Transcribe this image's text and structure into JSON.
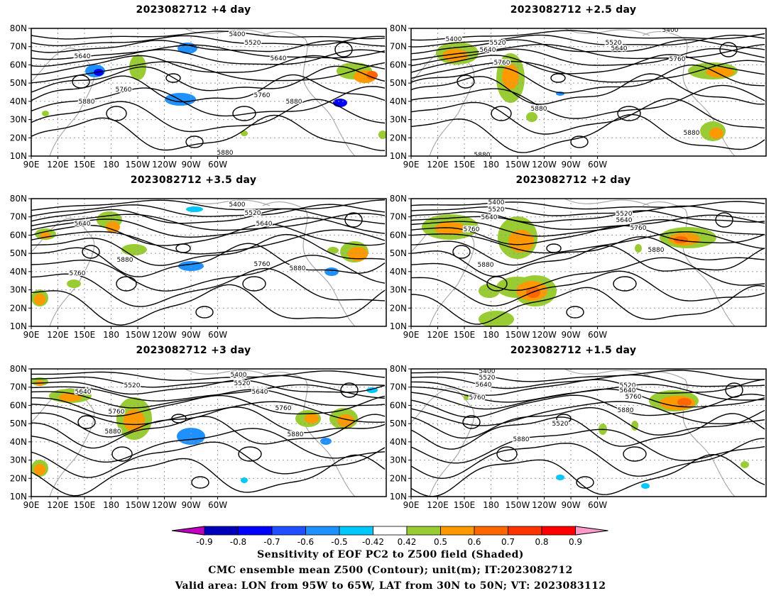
{
  "chart_data": [
    {
      "type": "heatmap",
      "title": "2023082712 +4 day",
      "xticks": [
        "90E",
        "120E",
        "150E",
        "180",
        "150W",
        "120W",
        "90W",
        "60W"
      ],
      "yticks": [
        "80N",
        "70N",
        "60N",
        "50N",
        "40N",
        "30N",
        "20N",
        "10N"
      ],
      "contour_labels": [
        "5400",
        "5520",
        "5640",
        "5640",
        "5760",
        "5760",
        "5880",
        "5880",
        "5880"
      ]
    },
    {
      "type": "heatmap",
      "title": "2023082712 +2.5 day",
      "xticks": [
        "90E",
        "120E",
        "150E",
        "180",
        "150W",
        "120W",
        "90W",
        "60W"
      ],
      "yticks": [
        "80N",
        "70N",
        "60N",
        "50N",
        "40N",
        "30N",
        "20N",
        "10N"
      ],
      "contour_labels": [
        "5400",
        "5400",
        "5520",
        "5520",
        "5640",
        "5640",
        "5760",
        "5760",
        "5880",
        "5880",
        "5880"
      ]
    },
    {
      "type": "heatmap",
      "title": "2023082712 +3.5 day",
      "xticks": [
        "90E",
        "120E",
        "150E",
        "180",
        "150W",
        "120W",
        "90W",
        "60W"
      ],
      "yticks": [
        "80N",
        "70N",
        "60N",
        "50N",
        "40N",
        "30N",
        "20N",
        "10N"
      ],
      "contour_labels": [
        "5400",
        "5520",
        "5640",
        "5640",
        "5760",
        "5760",
        "5880",
        "5880"
      ]
    },
    {
      "type": "heatmap",
      "title": "2023082712 +2 day",
      "xticks": [
        "90E",
        "120E",
        "150E",
        "180",
        "150W",
        "120W",
        "90W",
        "60W"
      ],
      "yticks": [
        "80N",
        "70N",
        "60N",
        "50N",
        "40N",
        "30N",
        "20N",
        "10N"
      ],
      "contour_labels": [
        "5400",
        "5520",
        "5640",
        "5520",
        "5640",
        "5760",
        "5760",
        "5880",
        "5880"
      ]
    },
    {
      "type": "heatmap",
      "title": "2023082712 +3 day",
      "xticks": [
        "90E",
        "120E",
        "150E",
        "180",
        "150W",
        "120W",
        "90W",
        "60W"
      ],
      "yticks": [
        "80N",
        "70N",
        "60N",
        "50N",
        "40N",
        "30N",
        "20N",
        "10N"
      ],
      "contour_labels": [
        "5400",
        "5520",
        "5520",
        "5640",
        "5640",
        "5760",
        "5760",
        "5880",
        "5880"
      ]
    },
    {
      "type": "heatmap",
      "title": "2023082712 +1.5 day",
      "xticks": [
        "90E",
        "120E",
        "150E",
        "180",
        "150W",
        "120W",
        "90W",
        "60W"
      ],
      "yticks": [
        "80N",
        "70N",
        "60N",
        "50N",
        "40N",
        "30N",
        "20N",
        "10N"
      ],
      "contour_labels": [
        "5400",
        "5520",
        "5640",
        "5760",
        "5520",
        "5640",
        "5760",
        "5880",
        "5520",
        "5880"
      ]
    }
  ],
  "colorbar": {
    "ticks": [
      "-0.9",
      "-0.8",
      "-0.7",
      "-0.6",
      "-0.5",
      "-0.42",
      "0.42",
      "0.5",
      "0.6",
      "0.7",
      "0.8",
      "0.9"
    ],
    "colors": [
      "#c000c0",
      "#0000bb",
      "#0000ff",
      "#1e50ff",
      "#1e90ff",
      "#00c8ff",
      "#ffffff",
      "#99cc33",
      "#ff9900",
      "#ff6600",
      "#ff3300",
      "#ff0000",
      "#ff99cc"
    ]
  },
  "captions": [
    "Sensitivity of EOF PC2 to Z500 field (Shaded)",
    "CMC ensemble mean Z500 (Contour); unit(m); IT:2023082712",
    "Valid area: LON from 95W to 65W, LAT from 30N to 50N; VT: 2023083112"
  ],
  "colors": {
    "contour": "#000000",
    "coast": "#aaaaaa",
    "grid": "#999999"
  }
}
